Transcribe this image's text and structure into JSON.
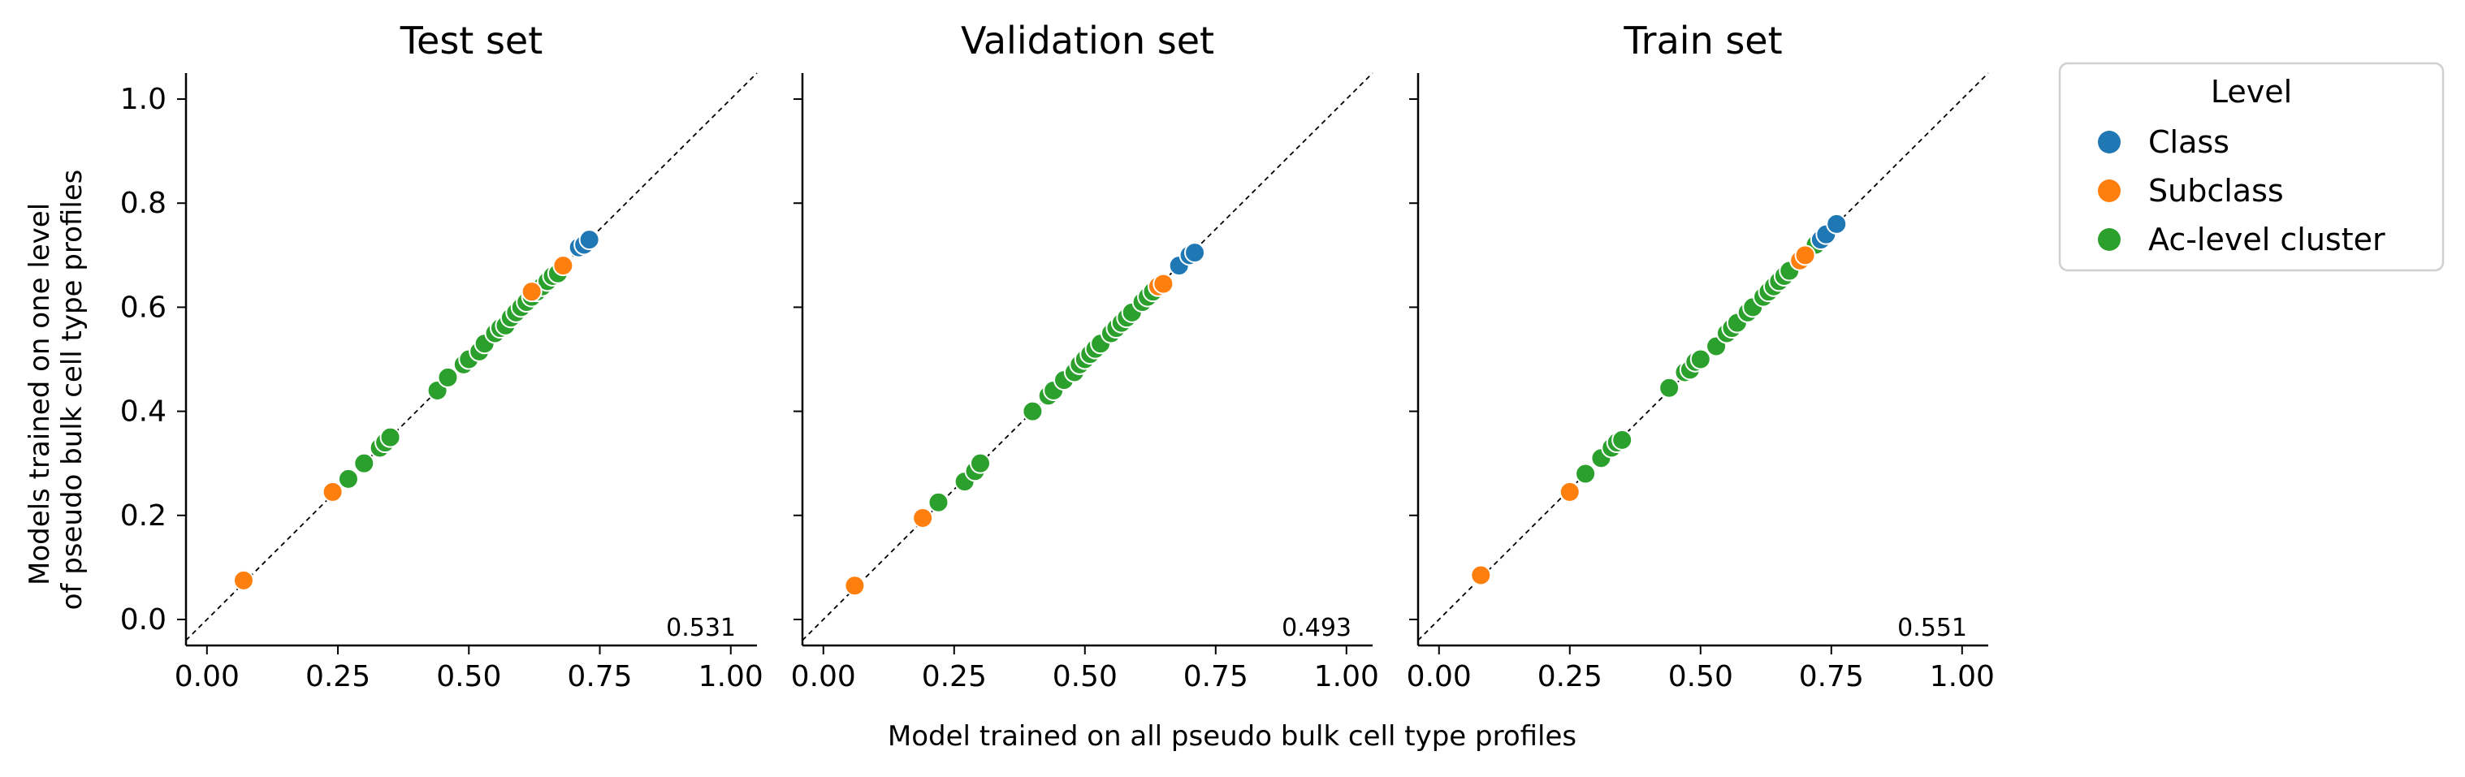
{
  "chart_data": {
    "type": "scatter",
    "xlabel": "Model trained on all pseudo bulk cell type profiles",
    "ylabel_lines": [
      "Models trained on one level",
      "of pseudo bulk cell type profiles"
    ],
    "xlim": [
      -0.04,
      1.05
    ],
    "ylim": [
      -0.05,
      1.05
    ],
    "x_ticks": [
      "0.00",
      "0.25",
      "0.50",
      "0.75",
      "1.00"
    ],
    "x_tick_values": [
      0,
      0.25,
      0.5,
      0.75,
      1.0
    ],
    "y_ticks": [
      "0.0",
      "0.2",
      "0.4",
      "0.6",
      "0.8",
      "1.0"
    ],
    "y_tick_values": [
      0,
      0.2,
      0.4,
      0.6,
      0.8,
      1.0
    ],
    "grid": false,
    "reference_line": "y = x (dashed)",
    "legend": {
      "title": "Level",
      "placement": "outside-right",
      "entries": [
        {
          "label": "Class",
          "color": "#1f77b4"
        },
        {
          "label": "Subclass",
          "color": "#ff7f0e"
        },
        {
          "label": "Ac-level cluster",
          "color": "#2ca02c"
        }
      ]
    },
    "panels": [
      {
        "title": "Test set",
        "corner_value": "0.531",
        "series": [
          {
            "name": "Ac-level cluster",
            "color": "#2ca02c",
            "x": [
              0.27,
              0.3,
              0.33,
              0.34,
              0.35,
              0.44,
              0.46,
              0.49,
              0.5,
              0.52,
              0.53,
              0.55,
              0.56,
              0.57,
              0.58,
              0.59,
              0.6,
              0.61,
              0.62,
              0.63,
              0.64,
              0.65,
              0.66,
              0.67
            ],
            "y": [
              0.27,
              0.3,
              0.33,
              0.34,
              0.35,
              0.44,
              0.465,
              0.49,
              0.5,
              0.515,
              0.53,
              0.55,
              0.56,
              0.565,
              0.58,
              0.59,
              0.6,
              0.61,
              0.62,
              0.63,
              0.64,
              0.65,
              0.66,
              0.665
            ]
          },
          {
            "name": "Subclass",
            "color": "#ff7f0e",
            "x": [
              0.07,
              0.24,
              0.62,
              0.68
            ],
            "y": [
              0.075,
              0.245,
              0.63,
              0.68
            ]
          },
          {
            "name": "Class",
            "color": "#1f77b4",
            "x": [
              0.71,
              0.72,
              0.73
            ],
            "y": [
              0.715,
              0.72,
              0.73
            ]
          }
        ]
      },
      {
        "title": "Validation set",
        "corner_value": "0.493",
        "series": [
          {
            "name": "Ac-level cluster",
            "color": "#2ca02c",
            "x": [
              0.22,
              0.27,
              0.29,
              0.3,
              0.4,
              0.43,
              0.44,
              0.46,
              0.48,
              0.49,
              0.5,
              0.51,
              0.52,
              0.53,
              0.55,
              0.56,
              0.57,
              0.58,
              0.59,
              0.61,
              0.62,
              0.63
            ],
            "y": [
              0.225,
              0.265,
              0.285,
              0.3,
              0.4,
              0.43,
              0.44,
              0.46,
              0.475,
              0.49,
              0.5,
              0.51,
              0.52,
              0.53,
              0.55,
              0.56,
              0.57,
              0.58,
              0.59,
              0.61,
              0.62,
              0.63
            ]
          },
          {
            "name": "Subclass",
            "color": "#ff7f0e",
            "x": [
              0.06,
              0.19,
              0.64,
              0.65
            ],
            "y": [
              0.065,
              0.195,
              0.64,
              0.645
            ]
          },
          {
            "name": "Class",
            "color": "#1f77b4",
            "x": [
              0.68,
              0.7,
              0.71
            ],
            "y": [
              0.68,
              0.7,
              0.705
            ]
          }
        ]
      },
      {
        "title": "Train set",
        "corner_value": "0.551",
        "series": [
          {
            "name": "Ac-level cluster",
            "color": "#2ca02c",
            "x": [
              0.28,
              0.31,
              0.33,
              0.34,
              0.35,
              0.44,
              0.47,
              0.48,
              0.49,
              0.5,
              0.53,
              0.55,
              0.56,
              0.57,
              0.59,
              0.6,
              0.62,
              0.63,
              0.64,
              0.65,
              0.66,
              0.67,
              0.69,
              0.7,
              0.72
            ],
            "y": [
              0.28,
              0.31,
              0.33,
              0.34,
              0.345,
              0.445,
              0.475,
              0.48,
              0.495,
              0.5,
              0.525,
              0.55,
              0.56,
              0.57,
              0.59,
              0.6,
              0.62,
              0.63,
              0.64,
              0.65,
              0.66,
              0.67,
              0.69,
              0.7,
              0.72
            ]
          },
          {
            "name": "Subclass",
            "color": "#ff7f0e",
            "x": [
              0.08,
              0.25,
              0.69,
              0.7
            ],
            "y": [
              0.085,
              0.245,
              0.69,
              0.7
            ]
          },
          {
            "name": "Class",
            "color": "#1f77b4",
            "x": [
              0.73,
              0.74,
              0.76
            ],
            "y": [
              0.73,
              0.74,
              0.76
            ]
          }
        ]
      }
    ]
  }
}
